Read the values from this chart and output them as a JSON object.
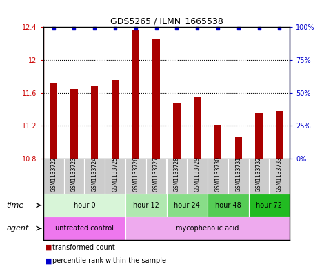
{
  "title": "GDS5265 / ILMN_1665538",
  "samples": [
    "GSM1133722",
    "GSM1133723",
    "GSM1133724",
    "GSM1133725",
    "GSM1133726",
    "GSM1133727",
    "GSM1133728",
    "GSM1133729",
    "GSM1133730",
    "GSM1133731",
    "GSM1133732",
    "GSM1133733"
  ],
  "bar_values": [
    11.72,
    11.65,
    11.68,
    11.76,
    12.36,
    12.26,
    11.47,
    11.55,
    11.21,
    11.07,
    11.35,
    11.38
  ],
  "percentile_values": [
    99,
    99,
    99,
    99,
    99,
    99,
    99,
    99,
    99,
    99,
    99,
    99
  ],
  "bar_color": "#aa0000",
  "dot_color": "#0000cc",
  "ylim_left": [
    10.8,
    12.4
  ],
  "ylim_right": [
    0,
    100
  ],
  "yticks_left": [
    10.8,
    11.2,
    11.6,
    12.0,
    12.4
  ],
  "ytick_labels_left": [
    "10.8",
    "11.2",
    "11.6",
    "12",
    "12.4"
  ],
  "yticks_right": [
    0,
    25,
    50,
    75,
    100
  ],
  "ytick_labels_right": [
    "0%",
    "25%",
    "50%",
    "75%",
    "100%"
  ],
  "dotted_lines": [
    11.2,
    11.6,
    12.0
  ],
  "time_groups": [
    {
      "label": "hour 0",
      "start": 0,
      "end": 4,
      "color": "#d8f5d8"
    },
    {
      "label": "hour 12",
      "start": 4,
      "end": 6,
      "color": "#b0e8b0"
    },
    {
      "label": "hour 24",
      "start": 6,
      "end": 8,
      "color": "#88dd88"
    },
    {
      "label": "hour 48",
      "start": 8,
      "end": 10,
      "color": "#55cc55"
    },
    {
      "label": "hour 72",
      "start": 10,
      "end": 12,
      "color": "#22bb22"
    }
  ],
  "agent_groups": [
    {
      "label": "untreated control",
      "start": 0,
      "end": 4,
      "color": "#ee77ee"
    },
    {
      "label": "mycophenolic acid",
      "start": 4,
      "end": 12,
      "color": "#eeaaee"
    }
  ],
  "sample_bg_color": "#cccccc",
  "left_axis_color": "#cc0000",
  "right_axis_color": "#0000cc",
  "legend_bar_label": "transformed count",
  "legend_dot_label": "percentile rank within the sample",
  "time_label": "time",
  "agent_label": "agent",
  "fig_border_color": "#000000"
}
